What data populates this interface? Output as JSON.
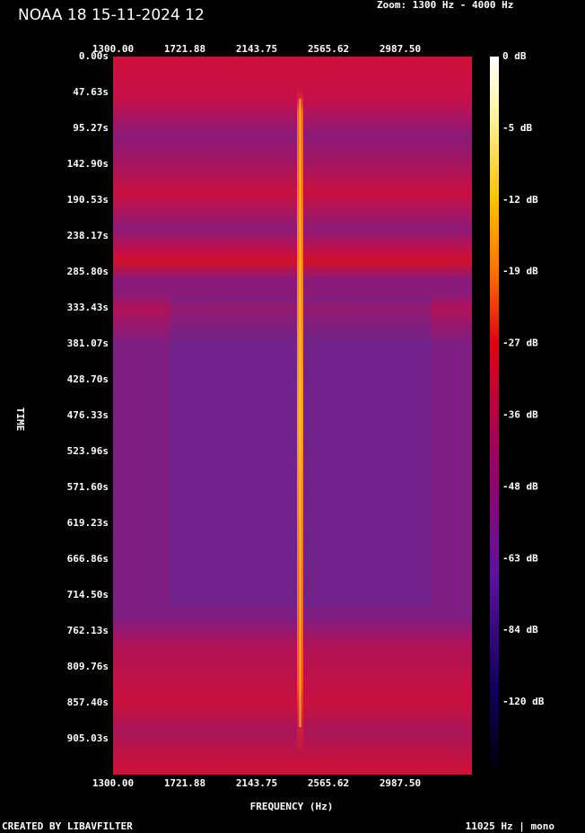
{
  "header": {
    "title": "NOAA 18 15-11-2024 12",
    "zoom": "Zoom: 1300 Hz - 4000 Hz"
  },
  "x_axis": {
    "label": "FREQUENCY (Hz)",
    "ticks": [
      "1300.00",
      "1721.88",
      "2143.75",
      "2565.62",
      "2987.50"
    ]
  },
  "y_axis": {
    "label": "TIME",
    "ticks": [
      "0.00s",
      "47.63s",
      "95.27s",
      "142.90s",
      "190.53s",
      "238.17s",
      "285.80s",
      "333.43s",
      "381.07s",
      "428.70s",
      "476.33s",
      "523.96s",
      "571.60s",
      "619.23s",
      "666.86s",
      "714.50s",
      "762.13s",
      "809.76s",
      "857.40s",
      "905.03s"
    ]
  },
  "colorbar": {
    "ticks": [
      "0 dB",
      "-5 dB",
      "-12 dB",
      "-19 dB",
      "-27 dB",
      "-36 dB",
      "-48 dB",
      "-63 dB",
      "-84 dB",
      "-120 dB"
    ]
  },
  "footer": {
    "left": "CREATED BY LIBAVFILTER",
    "right": "11025 Hz | mono"
  }
}
